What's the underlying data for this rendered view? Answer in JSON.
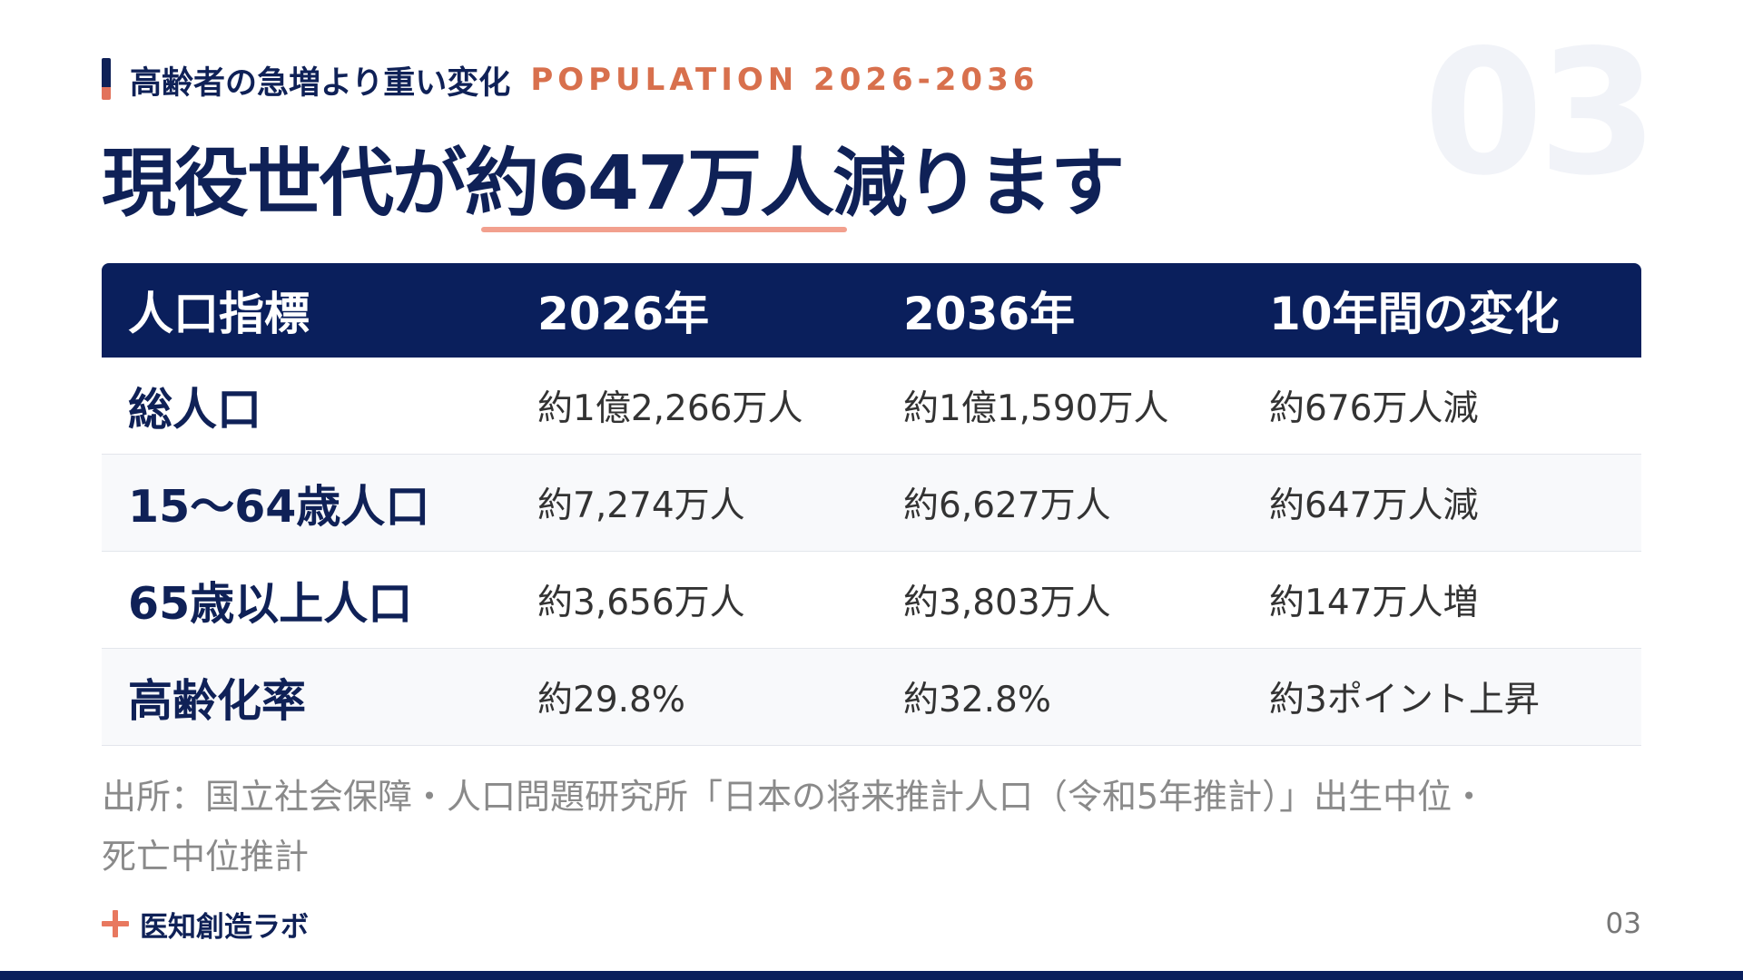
{
  "slide_number_watermark": "03",
  "kicker": {
    "jp": "高齢者の急増より重い変化",
    "en": "POPULATION 2026-2036"
  },
  "headline": "現役世代が約647万人減ります",
  "table": {
    "headers": [
      "人口指標",
      "2026年",
      "2036年",
      "10年間の変化"
    ],
    "rows": [
      {
        "label": "総人口",
        "v2026": "約1億2,266万人",
        "v2036": "約1億1,590万人",
        "change": "約676万人減"
      },
      {
        "label": "15〜64歳人口",
        "v2026": "約7,274万人",
        "v2036": "約6,627万人",
        "change": "約647万人減"
      },
      {
        "label": "65歳以上人口",
        "v2026": "約3,656万人",
        "v2036": "約3,803万人",
        "change": "約147万人増"
      },
      {
        "label": "高齢化率",
        "v2026": "約29.8%",
        "v2036": "約32.8%",
        "change": "約3ポイント上昇"
      }
    ]
  },
  "source": {
    "line1": "出所：国立社会保障・人口問題研究所「日本の将来推計人口（令和5年推計）」出生中位・",
    "line2": "死亡中位推計"
  },
  "footer": {
    "brand_icon": "plus-icon",
    "brand_name": "医知創造ラボ",
    "page_number": "03"
  },
  "colors": {
    "navy": "#0a1f5c",
    "accent": "#d8704d",
    "underline": "#f2a08e"
  }
}
